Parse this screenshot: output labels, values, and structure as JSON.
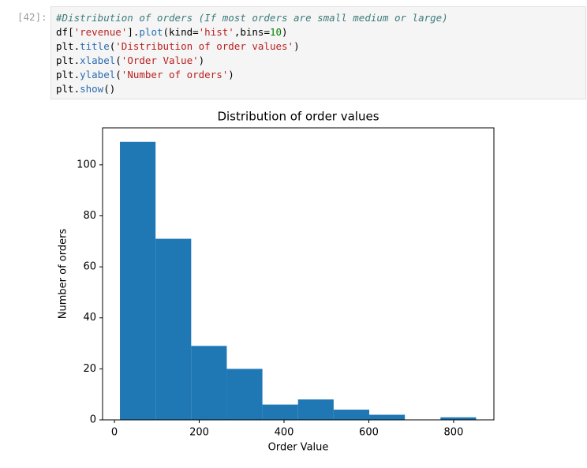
{
  "cell": {
    "prompt": "[42]:",
    "lines": [
      [
        {
          "text": "#Distribution of orders (If most orders are small medium or large)",
          "color": "#3d7b7b",
          "italic": true
        }
      ],
      [
        {
          "text": "df",
          "color": "#000000"
        },
        {
          "text": "[",
          "color": "#000000"
        },
        {
          "text": "'revenue'",
          "color": "#ba2121"
        },
        {
          "text": "].",
          "color": "#000000"
        },
        {
          "text": "plot",
          "color": "#2a6bb0"
        },
        {
          "text": "(kind=",
          "color": "#000000"
        },
        {
          "text": "'hist'",
          "color": "#ba2121"
        },
        {
          "text": ",bins=",
          "color": "#000000"
        },
        {
          "text": "10",
          "color": "#008000"
        },
        {
          "text": ")",
          "color": "#000000"
        }
      ],
      [
        {
          "text": "plt.",
          "color": "#000000"
        },
        {
          "text": "title",
          "color": "#2a6bb0"
        },
        {
          "text": "(",
          "color": "#000000"
        },
        {
          "text": "'Distribution of order values'",
          "color": "#ba2121"
        },
        {
          "text": ")",
          "color": "#000000"
        }
      ],
      [
        {
          "text": "plt.",
          "color": "#000000"
        },
        {
          "text": "xlabel",
          "color": "#2a6bb0"
        },
        {
          "text": "(",
          "color": "#000000"
        },
        {
          "text": "'Order Value'",
          "color": "#ba2121"
        },
        {
          "text": ")",
          "color": "#000000"
        }
      ],
      [
        {
          "text": "plt.",
          "color": "#000000"
        },
        {
          "text": "ylabel",
          "color": "#2a6bb0"
        },
        {
          "text": "(",
          "color": "#000000"
        },
        {
          "text": "'Number of orders'",
          "color": "#ba2121"
        },
        {
          "text": ")",
          "color": "#000000"
        }
      ],
      [
        {
          "text": "plt.",
          "color": "#000000"
        },
        {
          "text": "show",
          "color": "#2a6bb0"
        },
        {
          "text": "()",
          "color": "#000000"
        }
      ]
    ]
  },
  "chart_data": {
    "type": "histogram",
    "title": "Distribution of order values",
    "xlabel": "Order Value",
    "ylabel": "Number of orders",
    "bins": [
      13,
      97,
      181,
      265,
      349,
      433,
      517,
      601,
      685,
      769,
      853
    ],
    "values": [
      109,
      71,
      29,
      20,
      6,
      8,
      4,
      2,
      0,
      1
    ],
    "color": "#1f77b4",
    "xlim": [
      -28,
      895
    ],
    "ylim": [
      0,
      114.5
    ],
    "xticks": [
      0,
      200,
      400,
      600,
      800
    ],
    "yticks": [
      0,
      20,
      40,
      60,
      80,
      100
    ]
  }
}
